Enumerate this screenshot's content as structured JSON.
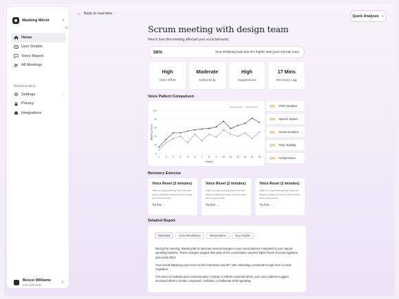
{
  "sidebar": {
    "brand": "Masking Mirror",
    "items": [
      {
        "label": "Home",
        "icon": "home-icon",
        "active": true
      },
      {
        "label": "User Details",
        "icon": "user-details-icon"
      },
      {
        "label": "Voice Report",
        "icon": "voice-report-icon"
      },
      {
        "label": "All Meetings",
        "icon": "meetings-icon"
      }
    ],
    "admin_title": "Administration",
    "admin_items": [
      {
        "label": "Settings",
        "icon": "gear-icon",
        "has_chevron": true
      },
      {
        "label": "Privacy",
        "icon": "lock-icon"
      },
      {
        "label": "Integrations",
        "icon": "integrations-icon"
      }
    ],
    "user": {
      "name": "Bosco Williams",
      "email": "bosco@lunetic"
    }
  },
  "header": {
    "back_label": "Back to overview",
    "quick_analysis_label": "Quick Analysis",
    "title": "Scrum meeting with design team",
    "subtitle": "Here's how this meeting affected your vocal behavior."
  },
  "load": {
    "value": "56%",
    "text": "Your Masking load was 9% higher than your normal voice"
  },
  "metrics": [
    {
      "value": "High",
      "label": "Voice Effort"
    },
    {
      "value": "Moderate",
      "label": "Authenticity"
    },
    {
      "value": "High",
      "label": "Suppression"
    },
    {
      "value": "17 Mins",
      "label": "Recovery Lag"
    }
  ],
  "voice_pattern": {
    "heading": "Voice Pattern Comparison",
    "chart_data": {
      "type": "line",
      "xlabel": "Weeks",
      "ylabel": "Masking Score",
      "x": [
        1,
        2,
        3,
        4,
        5,
        6,
        7,
        8,
        9,
        10,
        11,
        12,
        13,
        14,
        15
      ],
      "ylim": [
        0,
        100
      ],
      "yticks": [
        0,
        20,
        40,
        60,
        80,
        100
      ],
      "series": [
        {
          "name": "Meeting Issue",
          "color": "#3a3a42",
          "values": [
            15,
            33,
            48,
            48,
            52,
            55,
            57,
            58,
            62,
            75,
            58,
            65,
            70,
            82,
            72
          ]
        },
        {
          "name": "Natural Voice",
          "color": "#9a98a4",
          "values": [
            8,
            25,
            35,
            40,
            25,
            45,
            30,
            45,
            38,
            55,
            45,
            40,
            48,
            35,
            50
          ]
        }
      ],
      "legend": "top-right"
    },
    "features": [
      {
        "pct": "32%",
        "name": "Pitch Variation"
      },
      {
        "pct": "15%",
        "name": "Speech Speed"
      },
      {
        "pct": "30%",
        "name": "Pause Duration"
      },
      {
        "pct": "23%",
        "name": "Tone Stability"
      },
      {
        "pct": "18%",
        "name": "Compression"
      }
    ]
  },
  "recovery": {
    "heading": "Recovery Exercise",
    "exercises": [
      {
        "title": "Voice Reset (2 minutes)",
        "desc": "After a long meeting this exercise helps release tension in the throat and vocal cords.",
        "link": "Try this →"
      },
      {
        "title": "Voice Reset (2 minutes)",
        "desc": "After a long meeting this exercise helps release tension in the throat and vocal cords.",
        "link": "Try this →"
      },
      {
        "title": "Voice Reset (2 minutes)",
        "desc": "After a long meeting this exercise helps release tension in the throat and vocal cords.",
        "link": "Try this →"
      }
    ]
  },
  "report": {
    "heading": "Detailed Report",
    "tabs": [
      "Overview",
      "Voice Breakdown",
      "Interpretation",
      "Key Insights"
    ],
    "active_tab": 0,
    "paragraphs": [
      "During this meeting, Masking Mirror detected several changes in your vocal patterns compared to your natural speaking baseline. These changes suggest that parts of the conversation required higher levels of vocal regulation and social effort.",
      "Your overall Masking Load Score for this interaction was 56 / 100, indicating a moderate to high level of vocal regulation.",
      "This does not indicate poor communication. Instead, it reflects moments where your voice patterns suggest increased effort to remain composed, confident, or deliberate while speaking."
    ]
  }
}
